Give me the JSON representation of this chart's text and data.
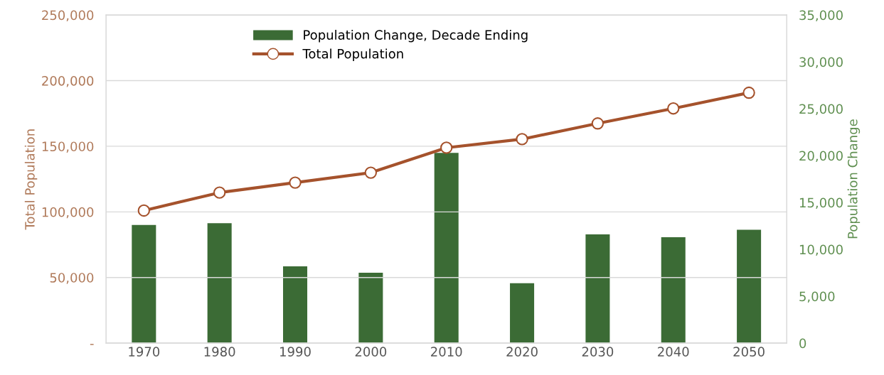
{
  "chart_data": {
    "type": "bar",
    "categories": [
      "1970",
      "1980",
      "1990",
      "2000",
      "2010",
      "2020",
      "2030",
      "2040",
      "2050"
    ],
    "series": [
      {
        "name": "Population Change, Decade Ending",
        "axis": "y2",
        "color": "#3b6b35",
        "values": [
          12600,
          12800,
          8200,
          7500,
          20300,
          6400,
          11600,
          11300,
          12100
        ]
      },
      {
        "name": "Total Population",
        "type": "line",
        "axis": "y",
        "color": "#a5522c",
        "marker": "circle",
        "values": [
          101000,
          114700,
          122300,
          129900,
          148900,
          155400,
          167400,
          178800,
          190800
        ]
      }
    ],
    "ylabel": "Total Population",
    "y2label": "Population Change",
    "ylim": [
      0,
      250000
    ],
    "yticks": [
      {
        "value": 0,
        "label": "-"
      },
      {
        "value": 50000,
        "label": "50,000"
      },
      {
        "value": 100000,
        "label": "100,000"
      },
      {
        "value": 150000,
        "label": "150,000"
      },
      {
        "value": 200000,
        "label": "200,000"
      },
      {
        "value": 250000,
        "label": "250,000"
      }
    ],
    "y2lim": [
      0,
      35000
    ],
    "y2ticks": [
      {
        "value": 0,
        "label": "0"
      },
      {
        "value": 5000,
        "label": "5,000"
      },
      {
        "value": 10000,
        "label": "10,000"
      },
      {
        "value": 15000,
        "label": "15,000"
      },
      {
        "value": 20000,
        "label": "20,000"
      },
      {
        "value": 25000,
        "label": "25,000"
      },
      {
        "value": 30000,
        "label": "30,000"
      },
      {
        "value": 35000,
        "label": "35,000"
      }
    ],
    "grid": "y",
    "legend": "top"
  }
}
